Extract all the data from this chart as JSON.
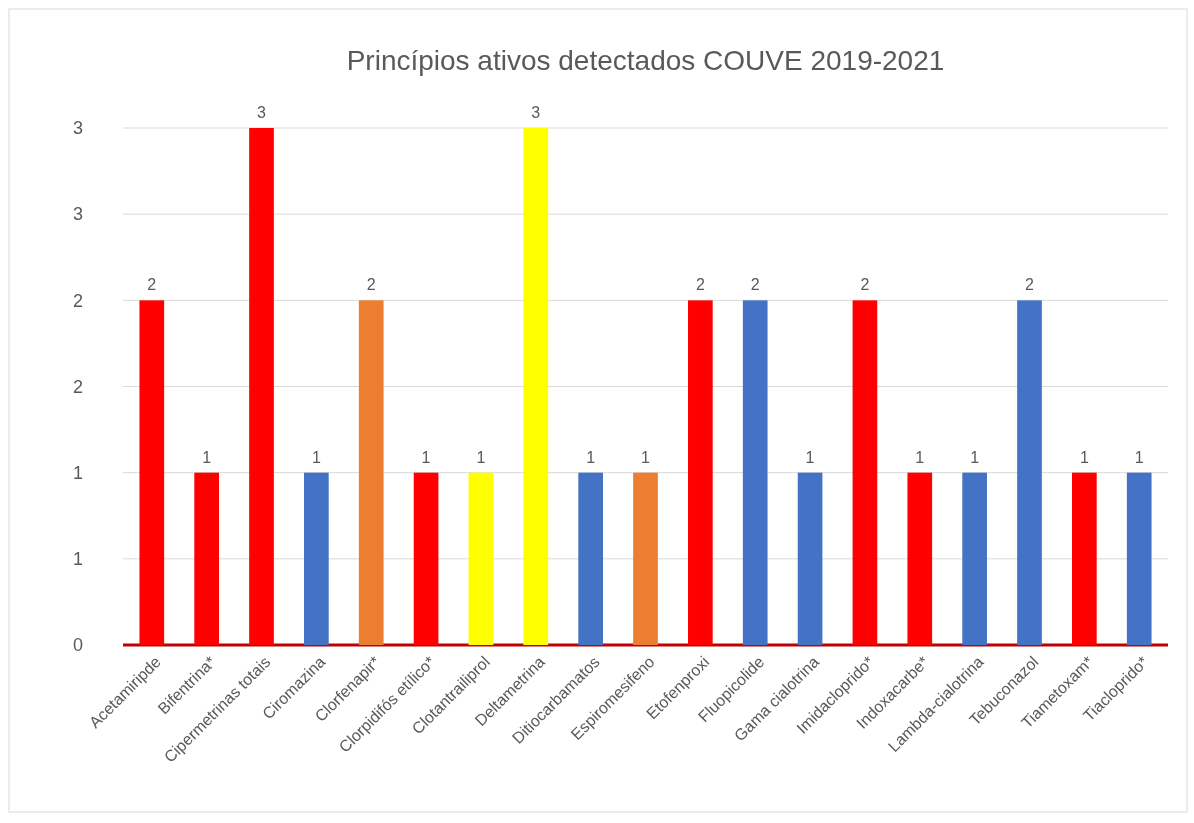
{
  "chart_data": {
    "type": "bar",
    "title": "Princípios ativos detectados COUVE 2019-2021",
    "categories": [
      "Acetamiripde",
      "Bifentrina*",
      "Cipermetrinas totais",
      "Ciromazina",
      "Clorfenapir*",
      "Clorpidifós etílico*",
      "Clotantrailiprol",
      "Deltametrina",
      "Ditiocarbamatos",
      "Espiromesifeno",
      "Etofenproxi",
      "Fluopicolide",
      "Gama cialotrina",
      "Imidacloprido*",
      "Indoxacarbe*",
      "Lambda-cialotrina",
      "Tebuconazol",
      "Tiametoxam*",
      "Tiacloprido*"
    ],
    "values": [
      2,
      1,
      3,
      1,
      2,
      1,
      1,
      3,
      1,
      1,
      2,
      2,
      1,
      2,
      1,
      1,
      2,
      1,
      1
    ],
    "colors": [
      "#ff0000",
      "#ff0000",
      "#ff0000",
      "#4472c4",
      "#ed7d31",
      "#ff0000",
      "#ffff00",
      "#ffff00",
      "#4472c4",
      "#ed7d31",
      "#ff0000",
      "#4472c4",
      "#4472c4",
      "#ff0000",
      "#ff0000",
      "#4472c4",
      "#4472c4",
      "#ff0000",
      "#4472c4"
    ],
    "ylim": [
      0,
      3
    ],
    "yticks": [
      0,
      {
        "value": 0.5,
        "label": "1"
      },
      1,
      {
        "value": 1.5,
        "label": "2"
      },
      2,
      {
        "value": 2.5,
        "label": "3"
      },
      3
    ],
    "grid": "y",
    "data_labels": true
  }
}
